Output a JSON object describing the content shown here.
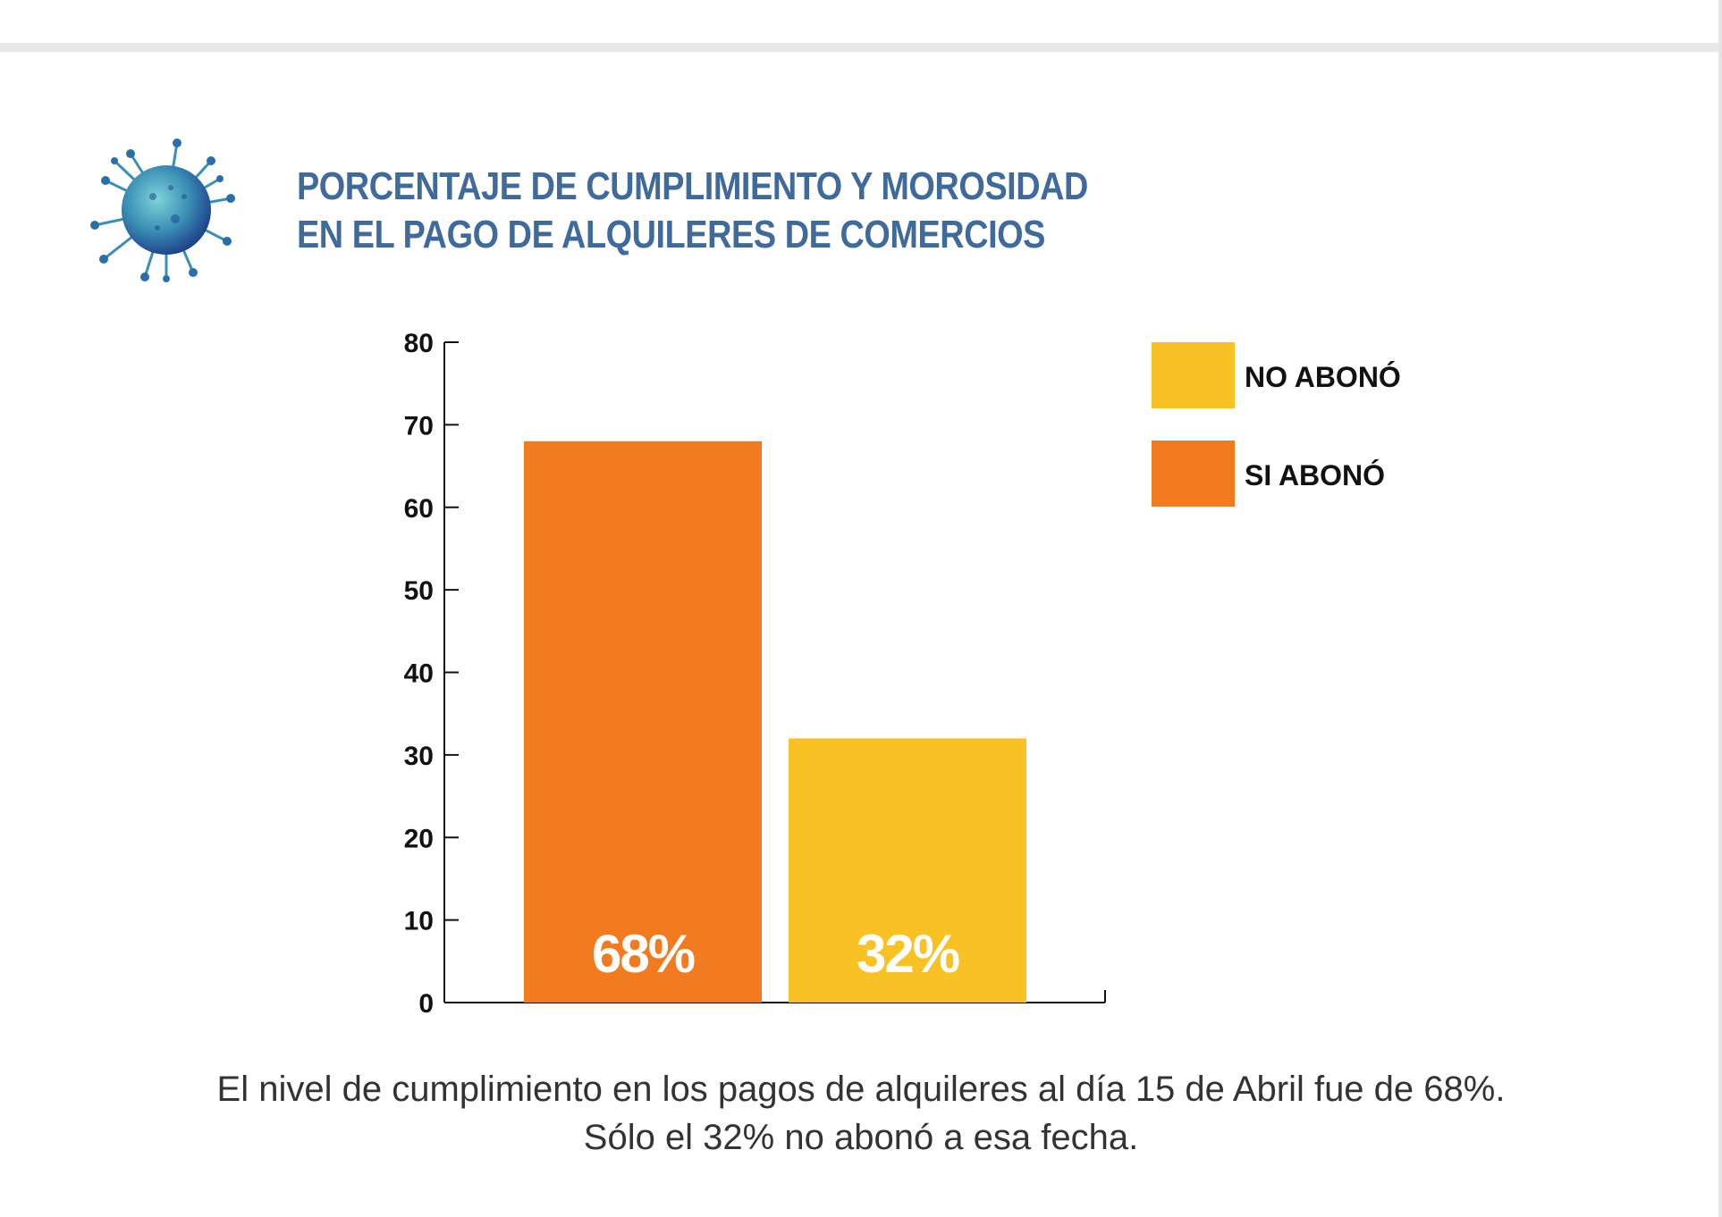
{
  "colors": {
    "title": "#3f6a99",
    "si_abono": "#f27b1f",
    "no_abono": "#f8c224",
    "axis": "#111111",
    "caption": "#333333"
  },
  "icons": {
    "virus": "virus-icon"
  },
  "title": {
    "line1": "PORCENTAJE DE CUMPLIMIENTO Y MOROSIDAD",
    "line2": "EN EL PAGO DE ALQUILERES DE COMERCIOS"
  },
  "chart_data": {
    "type": "bar",
    "title": "PORCENTAJE DE CUMPLIMIENTO Y MOROSIDAD EN EL PAGO DE ALQUILERES DE COMERCIOS",
    "categories": [
      "SI ABONÓ",
      "NO ABONÓ"
    ],
    "values": [
      68,
      32
    ],
    "data_labels": [
      "68%",
      "32%"
    ],
    "colors": [
      "#f27b1f",
      "#f8c224"
    ],
    "ylim": [
      0,
      80
    ],
    "yticks": [
      0,
      10,
      20,
      30,
      40,
      50,
      60,
      70,
      80
    ],
    "xlabel": "",
    "ylabel": "",
    "grid": false,
    "legend": {
      "placement": "top-right",
      "entries": [
        {
          "label": "NO ABONÓ",
          "color": "#f8c224"
        },
        {
          "label": "SI ABONÓ",
          "color": "#f27b1f"
        }
      ]
    }
  },
  "caption": {
    "line1": "El nivel de cumplimiento en los pagos de alquileres al día 15 de Abril fue de 68%.",
    "line2": "Sólo el 32% no abonó a esa fecha."
  }
}
